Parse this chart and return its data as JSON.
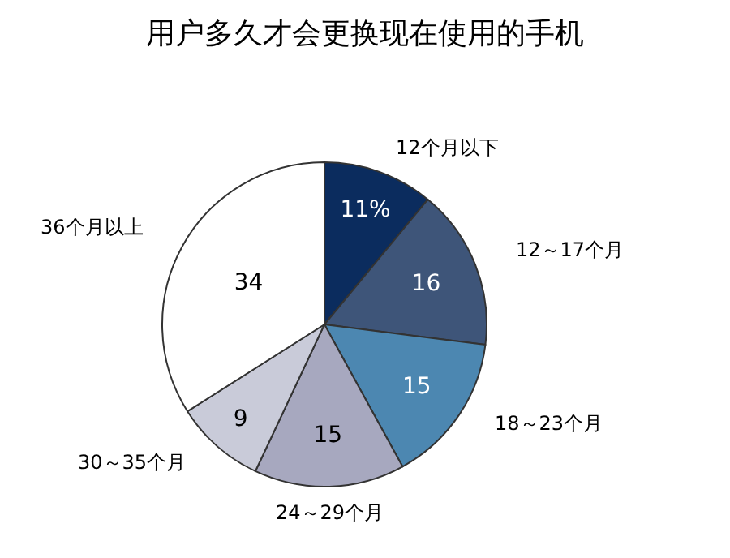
{
  "chart_data": {
    "type": "pie",
    "title": "用户多久才会更换现在使用的手机",
    "categories": [
      "12个月以下",
      "12～17个月",
      "18～23个月",
      "24～29个月",
      "30～35个月",
      "36个月以上"
    ],
    "values": [
      11,
      16,
      15,
      15,
      9,
      34
    ],
    "value_labels": [
      "11%",
      "16",
      "15",
      "15",
      "9",
      "34"
    ],
    "colors": [
      "#0b2c5e",
      "#3e5579",
      "#4c87b1",
      "#a7a8bf",
      "#c9cbd9",
      "#ffffff"
    ],
    "legend": false
  }
}
